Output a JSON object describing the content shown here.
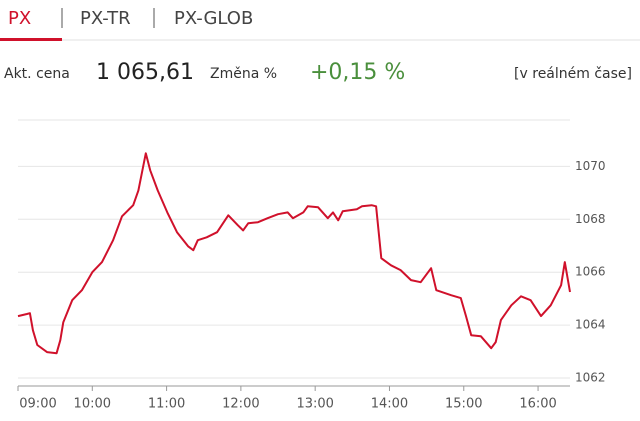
{
  "tabs": [
    "PX",
    "PX-TR",
    "PX-GLOB"
  ],
  "quote": {
    "price_label": "Akt. cena",
    "price": "1 065,61",
    "change_label": "Změna %",
    "change": "+0,15 %",
    "realtime": "[v reálném čase]"
  },
  "chart_data": {
    "type": "line",
    "color": "#d0112b",
    "x": [
      9.0,
      9.12,
      9.16,
      9.2,
      9.26,
      9.39,
      9.52,
      9.57,
      9.61,
      9.73,
      9.86,
      10.0,
      10.13,
      10.28,
      10.4,
      10.55,
      10.62,
      10.72,
      10.78,
      10.88,
      11.01,
      11.14,
      11.29,
      11.36,
      11.42,
      11.54,
      11.68,
      11.83,
      11.96,
      12.03,
      12.1,
      12.23,
      12.36,
      12.5,
      12.63,
      12.7,
      12.84,
      12.9,
      13.04,
      13.17,
      13.24,
      13.31,
      13.37,
      13.56,
      13.63,
      13.76,
      13.82,
      13.89,
      14.02,
      14.15,
      14.29,
      14.42,
      14.56,
      14.63,
      14.83,
      14.96,
      15.03,
      15.1,
      15.23,
      15.37,
      15.43,
      15.5,
      15.64,
      15.77,
      15.9,
      16.04,
      16.17,
      16.31,
      16.36,
      16.43
    ],
    "values": [
      1064.34,
      1064.42,
      1064.45,
      1063.81,
      1063.25,
      1062.98,
      1062.94,
      1063.43,
      1064.11,
      1064.94,
      1065.32,
      1066.0,
      1066.38,
      1067.21,
      1068.11,
      1068.53,
      1069.09,
      1070.49,
      1069.85,
      1069.09,
      1068.26,
      1067.51,
      1066.98,
      1066.83,
      1067.21,
      1067.32,
      1067.51,
      1068.15,
      1067.77,
      1067.58,
      1067.85,
      1067.89,
      1068.04,
      1068.19,
      1068.26,
      1068.04,
      1068.26,
      1068.49,
      1068.45,
      1068.04,
      1068.26,
      1067.96,
      1068.3,
      1068.38,
      1068.49,
      1068.53,
      1068.49,
      1066.53,
      1066.26,
      1066.08,
      1065.7,
      1065.62,
      1066.15,
      1065.32,
      1065.13,
      1065.02,
      1064.34,
      1063.62,
      1063.58,
      1063.13,
      1063.36,
      1064.19,
      1064.75,
      1065.09,
      1064.94,
      1064.34,
      1064.75,
      1065.51,
      1066.38,
      1065.25
    ],
    "xlim": [
      9,
      16.43
    ],
    "xticks": [
      {
        "value": 9,
        "label": "09:00"
      },
      {
        "value": 10,
        "label": "10:00"
      },
      {
        "value": 11,
        "label": "11:00"
      },
      {
        "value": 12,
        "label": "12:00"
      },
      {
        "value": 13,
        "label": "13:00"
      },
      {
        "value": 14,
        "label": "14:00"
      },
      {
        "value": 15,
        "label": "15:00"
      },
      {
        "value": 16,
        "label": "16:00"
      }
    ],
    "ylim": [
      1061.7,
      1071.75
    ],
    "yticks": [
      1062,
      1064,
      1066,
      1068,
      1070
    ],
    "grid": true
  }
}
